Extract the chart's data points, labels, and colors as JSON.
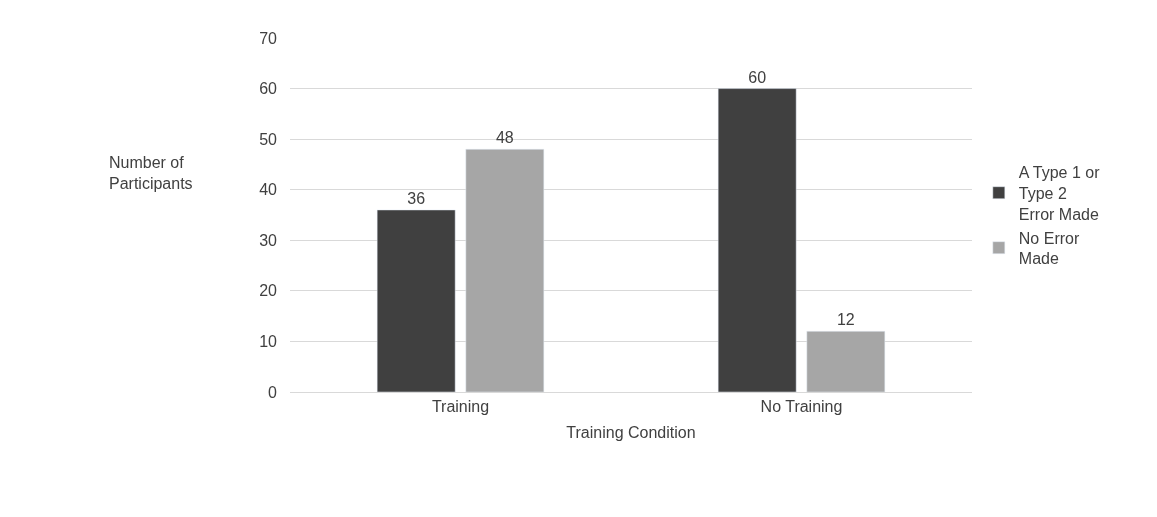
{
  "chart_data": {
    "type": "bar",
    "xlabel": "Training Condition",
    "ylabel": "Number of Participants",
    "categories": [
      "Training",
      "No Training"
    ],
    "series": [
      {
        "name": "A Type 1 or Type 2 Error Made",
        "color": "#404040",
        "values": [
          36,
          60
        ]
      },
      {
        "name": "No Error Made",
        "color": "#a6a6a6",
        "values": [
          48,
          12
        ]
      }
    ],
    "ylim": [
      0,
      70
    ],
    "yticks": [
      0,
      10,
      20,
      30,
      40,
      50,
      60,
      70
    ],
    "grid": "y",
    "legend": "right",
    "data_labels": true
  }
}
